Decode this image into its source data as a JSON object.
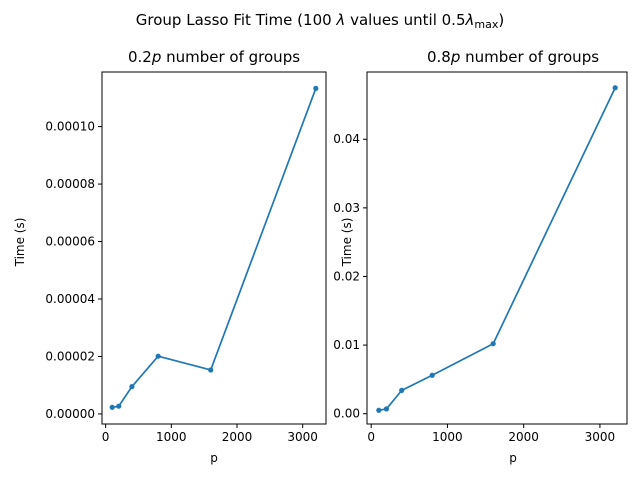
{
  "figure": {
    "suptitle": {
      "prefix": "Group Lasso Fit Time (100 ",
      "lambda": "λ",
      "middle": " values until 0.5",
      "lambda2": "λ",
      "subscript": "max",
      "suffix": ")"
    }
  },
  "chart_data": [
    {
      "type": "line",
      "title": {
        "prefix": "0.2",
        "italic": "p",
        "suffix": " number of groups"
      },
      "xlabel": "p",
      "ylabel": "Time (s)",
      "x": [
        100,
        200,
        400,
        800,
        1600,
        3200
      ],
      "series": [
        {
          "values": [
            2.3e-06,
            2.7e-06,
            9.5e-06,
            2.01e-05,
            1.53e-05,
            0.0001133
          ],
          "color": "#1f77b4"
        }
      ],
      "xlim": [
        -55,
        3355
      ],
      "ylim": [
        -3.5e-06,
        0.000119
      ],
      "xticks": [
        0,
        1000,
        2000,
        3000
      ],
      "xtick_labels": [
        "0",
        "1000",
        "2000",
        "3000"
      ],
      "yticks": [
        0,
        2e-05,
        4e-05,
        6e-05,
        8e-05,
        0.0001
      ],
      "ytick_labels": [
        "0.00000",
        "0.00002",
        "0.00004",
        "0.00006",
        "0.00008",
        "0.00010"
      ],
      "grid": false
    },
    {
      "type": "line",
      "title": {
        "prefix": "0.8",
        "italic": "p",
        "suffix": " number of groups"
      },
      "xlabel": "p",
      "ylabel": "Time (s)",
      "x": [
        100,
        200,
        400,
        800,
        1600,
        3200
      ],
      "series": [
        {
          "values": [
            0.0005,
            0.0007,
            0.0034,
            0.0056,
            0.0102,
            0.0475
          ],
          "color": "#1f77b4"
        }
      ],
      "xlim": [
        -55,
        3355
      ],
      "ylim": [
        -0.0015,
        0.0498
      ],
      "xticks": [
        0,
        1000,
        2000,
        3000
      ],
      "xtick_labels": [
        "0",
        "1000",
        "2000",
        "3000"
      ],
      "yticks": [
        0,
        0.01,
        0.02,
        0.03,
        0.04
      ],
      "ytick_labels": [
        "0.00",
        "0.01",
        "0.02",
        "0.03",
        "0.04"
      ],
      "grid": false
    }
  ]
}
